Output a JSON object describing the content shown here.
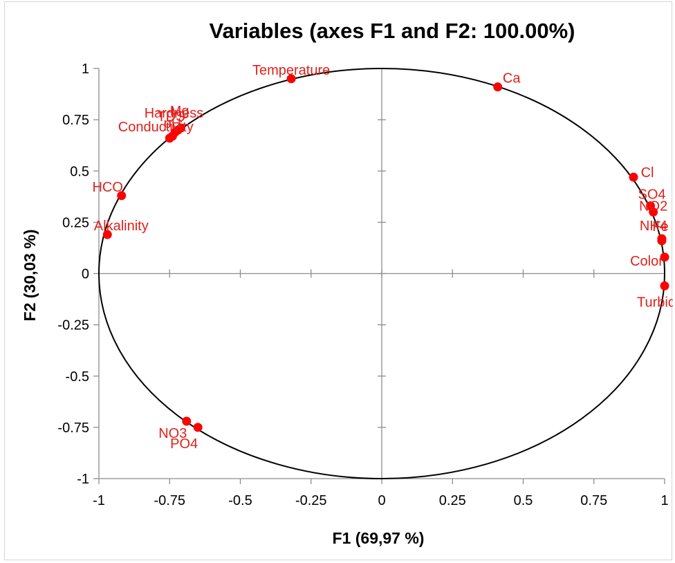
{
  "chart_data": {
    "type": "scatter",
    "title": "Variables (axes F1 and F2: 100.00%)",
    "xlabel": "F1 (69,97 %)",
    "ylabel": "F2 (30,03 %)",
    "xlim": [
      -1,
      1
    ],
    "ylim": [
      -1,
      1
    ],
    "x_ticks": [
      "-1",
      "-0.75",
      "-0.5",
      "-0.25",
      "0",
      "0.25",
      "0.5",
      "0.75",
      "1"
    ],
    "y_ticks": [
      "1",
      "0.75",
      "0.5",
      "0.25",
      "0",
      "-0.25",
      "-0.5",
      "-0.75",
      "-1"
    ],
    "correlation_circle": true,
    "point_color": "#ff0000",
    "label_color": "#e0201b",
    "points": [
      {
        "label": "Temperature",
        "x": -0.32,
        "y": 0.95
      },
      {
        "label": "Ca",
        "x": 0.41,
        "y": 0.91
      },
      {
        "label": "Conductivity",
        "x": -0.75,
        "y": 0.66
      },
      {
        "label": "Hardness",
        "x": -0.72,
        "y": 0.7
      },
      {
        "label": "TDS",
        "x": -0.73,
        "y": 0.69
      },
      {
        "label": "Mg",
        "x": -0.71,
        "y": 0.71
      },
      {
        "label": "pH",
        "x": -0.74,
        "y": 0.67
      },
      {
        "label": "HCO",
        "x": -0.92,
        "y": 0.38
      },
      {
        "label": "Alkalinity",
        "x": -0.97,
        "y": 0.19
      },
      {
        "label": "Cl",
        "x": 0.89,
        "y": 0.47
      },
      {
        "label": "SO4",
        "x": 0.95,
        "y": 0.33
      },
      {
        "label": "NO2",
        "x": 0.96,
        "y": 0.3
      },
      {
        "label": "NH4",
        "x": 0.99,
        "y": 0.17
      },
      {
        "label": "Fe",
        "x": 0.99,
        "y": 0.16
      },
      {
        "label": "Color",
        "x": 1.0,
        "y": 0.08
      },
      {
        "label": "Turbidity",
        "x": 1.0,
        "y": -0.06
      },
      {
        "label": "NO3",
        "x": -0.69,
        "y": -0.72
      },
      {
        "label": "PO4",
        "x": -0.65,
        "y": -0.75
      }
    ]
  }
}
